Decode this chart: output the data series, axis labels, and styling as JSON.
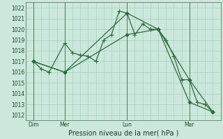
{
  "background_color": "#cce8dc",
  "grid_color": "#99ccbb",
  "line_color": "#2d6b3a",
  "xlabel": "Pression niveau de la mer( hPa )",
  "ylim": [
    1011.5,
    1022.5
  ],
  "yticks": [
    1012,
    1013,
    1014,
    1015,
    1016,
    1017,
    1018,
    1019,
    1020,
    1021,
    1022
  ],
  "xlim": [
    0,
    25
  ],
  "day_labels": [
    "Dim",
    "Mer",
    "Lun",
    "Mar"
  ],
  "day_positions": [
    1,
    5,
    13,
    21
  ],
  "vline_positions": [
    1,
    5,
    13,
    21
  ],
  "line1_x": [
    1,
    2,
    3,
    5,
    6,
    7,
    8,
    9,
    10,
    11,
    12,
    13,
    14,
    15,
    16,
    17,
    18,
    19,
    20,
    21,
    22,
    23,
    24
  ],
  "line1_y": [
    1017.0,
    1016.3,
    1016.0,
    1018.7,
    1017.8,
    1017.6,
    1017.5,
    1017.0,
    1019.0,
    1019.5,
    1021.7,
    1021.5,
    1019.5,
    1020.5,
    1020.0,
    1020.0,
    1019.0,
    1017.5,
    1015.3,
    1015.3,
    1013.2,
    1013.0,
    1012.3
  ],
  "line2_x": [
    1,
    5,
    13,
    17,
    21,
    24
  ],
  "line2_y": [
    1017.0,
    1016.0,
    1019.5,
    1020.0,
    1015.3,
    1012.3
  ],
  "line3_x": [
    1,
    5,
    13,
    17,
    21,
    24
  ],
  "line3_y": [
    1017.0,
    1016.0,
    1021.5,
    1020.0,
    1013.2,
    1012.3
  ],
  "tick_fontsize": 5.5,
  "xlabel_fontsize": 7.0
}
